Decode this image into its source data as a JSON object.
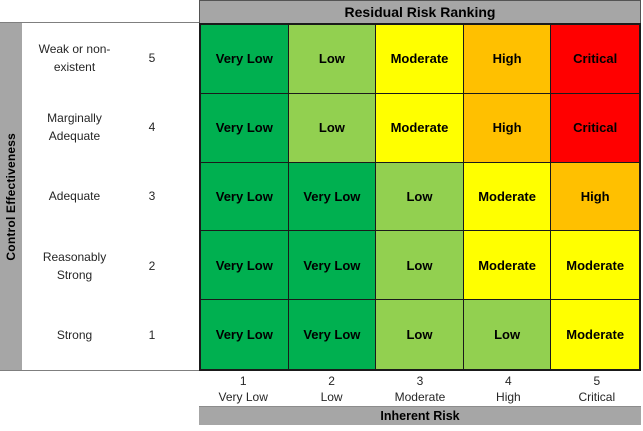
{
  "title": "Residual Risk Ranking",
  "y_axis_title": "Control Effectiveness",
  "x_axis_title": "Inherent Risk",
  "x_axis": {
    "ticks": [
      {
        "num": "1",
        "label": "Very Low"
      },
      {
        "num": "2",
        "label": "Low"
      },
      {
        "num": "3",
        "label": "Moderate"
      },
      {
        "num": "4",
        "label": "High"
      },
      {
        "num": "5",
        "label": "Critical"
      }
    ]
  },
  "rows": [
    {
      "label_lines": [
        "Weak or non-",
        "existent"
      ],
      "num": "5",
      "cells": [
        {
          "text": "Very Low",
          "color": "#00B050"
        },
        {
          "text": "Low",
          "color": "#92D050"
        },
        {
          "text": "Moderate",
          "color": "#FFFF00"
        },
        {
          "text": "High",
          "color": "#FFC000"
        },
        {
          "text": "Critical",
          "color": "#FF0000"
        }
      ]
    },
    {
      "label_lines": [
        "Marginally",
        "Adequate"
      ],
      "num": "4",
      "cells": [
        {
          "text": "Very Low",
          "color": "#00B050"
        },
        {
          "text": "Low",
          "color": "#92D050"
        },
        {
          "text": "Moderate",
          "color": "#FFFF00"
        },
        {
          "text": "High",
          "color": "#FFC000"
        },
        {
          "text": "Critical",
          "color": "#FF0000"
        }
      ]
    },
    {
      "label_lines": [
        "Adequate"
      ],
      "num": "3",
      "cells": [
        {
          "text": "Very Low",
          "color": "#00B050"
        },
        {
          "text": "Very Low",
          "color": "#00B050"
        },
        {
          "text": "Low",
          "color": "#92D050"
        },
        {
          "text": "Moderate",
          "color": "#FFFF00"
        },
        {
          "text": "High",
          "color": "#FFC000"
        }
      ]
    },
    {
      "label_lines": [
        "Reasonably",
        "Strong"
      ],
      "num": "2",
      "cells": [
        {
          "text": "Very Low",
          "color": "#00B050"
        },
        {
          "text": "Very Low",
          "color": "#00B050"
        },
        {
          "text": "Low",
          "color": "#92D050"
        },
        {
          "text": "Moderate",
          "color": "#FFFF00"
        },
        {
          "text": "Moderate",
          "color": "#FFFF00"
        }
      ]
    },
    {
      "label_lines": [
        "Strong"
      ],
      "num": "1",
      "cells": [
        {
          "text": "Very Low",
          "color": "#00B050"
        },
        {
          "text": "Very Low",
          "color": "#00B050"
        },
        {
          "text": "Low",
          "color": "#92D050"
        },
        {
          "text": "Low",
          "color": "#92D050"
        },
        {
          "text": "Moderate",
          "color": "#FFFF00"
        }
      ]
    }
  ],
  "colors": {
    "green": "#00B050",
    "light_green": "#92D050",
    "yellow": "#FFFF00",
    "orange": "#FFC000",
    "red": "#FF0000",
    "gray_band": "#A6A6A6",
    "grid_border": "#1A1A1A"
  },
  "chart_data": {
    "type": "heatmap",
    "title": "Residual Risk Ranking",
    "xlabel": "Inherent Risk",
    "ylabel": "Control Effectiveness",
    "x_categories": [
      "1 Very Low",
      "2 Low",
      "3 Moderate",
      "4 High",
      "5 Critical"
    ],
    "y_categories": [
      "5 Weak or non-existent",
      "4 Marginally Adequate",
      "3 Adequate",
      "2 Reasonably Strong",
      "1 Strong"
    ],
    "values": [
      [
        "Very Low",
        "Low",
        "Moderate",
        "High",
        "Critical"
      ],
      [
        "Very Low",
        "Low",
        "Moderate",
        "High",
        "Critical"
      ],
      [
        "Very Low",
        "Very Low",
        "Low",
        "Moderate",
        "High"
      ],
      [
        "Very Low",
        "Very Low",
        "Low",
        "Moderate",
        "Moderate"
      ],
      [
        "Very Low",
        "Very Low",
        "Low",
        "Low",
        "Moderate"
      ]
    ],
    "cell_colors": [
      [
        "#00B050",
        "#92D050",
        "#FFFF00",
        "#FFC000",
        "#FF0000"
      ],
      [
        "#00B050",
        "#92D050",
        "#FFFF00",
        "#FFC000",
        "#FF0000"
      ],
      [
        "#00B050",
        "#00B050",
        "#92D050",
        "#FFFF00",
        "#FFC000"
      ],
      [
        "#00B050",
        "#00B050",
        "#92D050",
        "#FFFF00",
        "#FFFF00"
      ],
      [
        "#00B050",
        "#00B050",
        "#92D050",
        "#92D050",
        "#FFFF00"
      ]
    ],
    "legend_position": "none",
    "grid": true
  }
}
